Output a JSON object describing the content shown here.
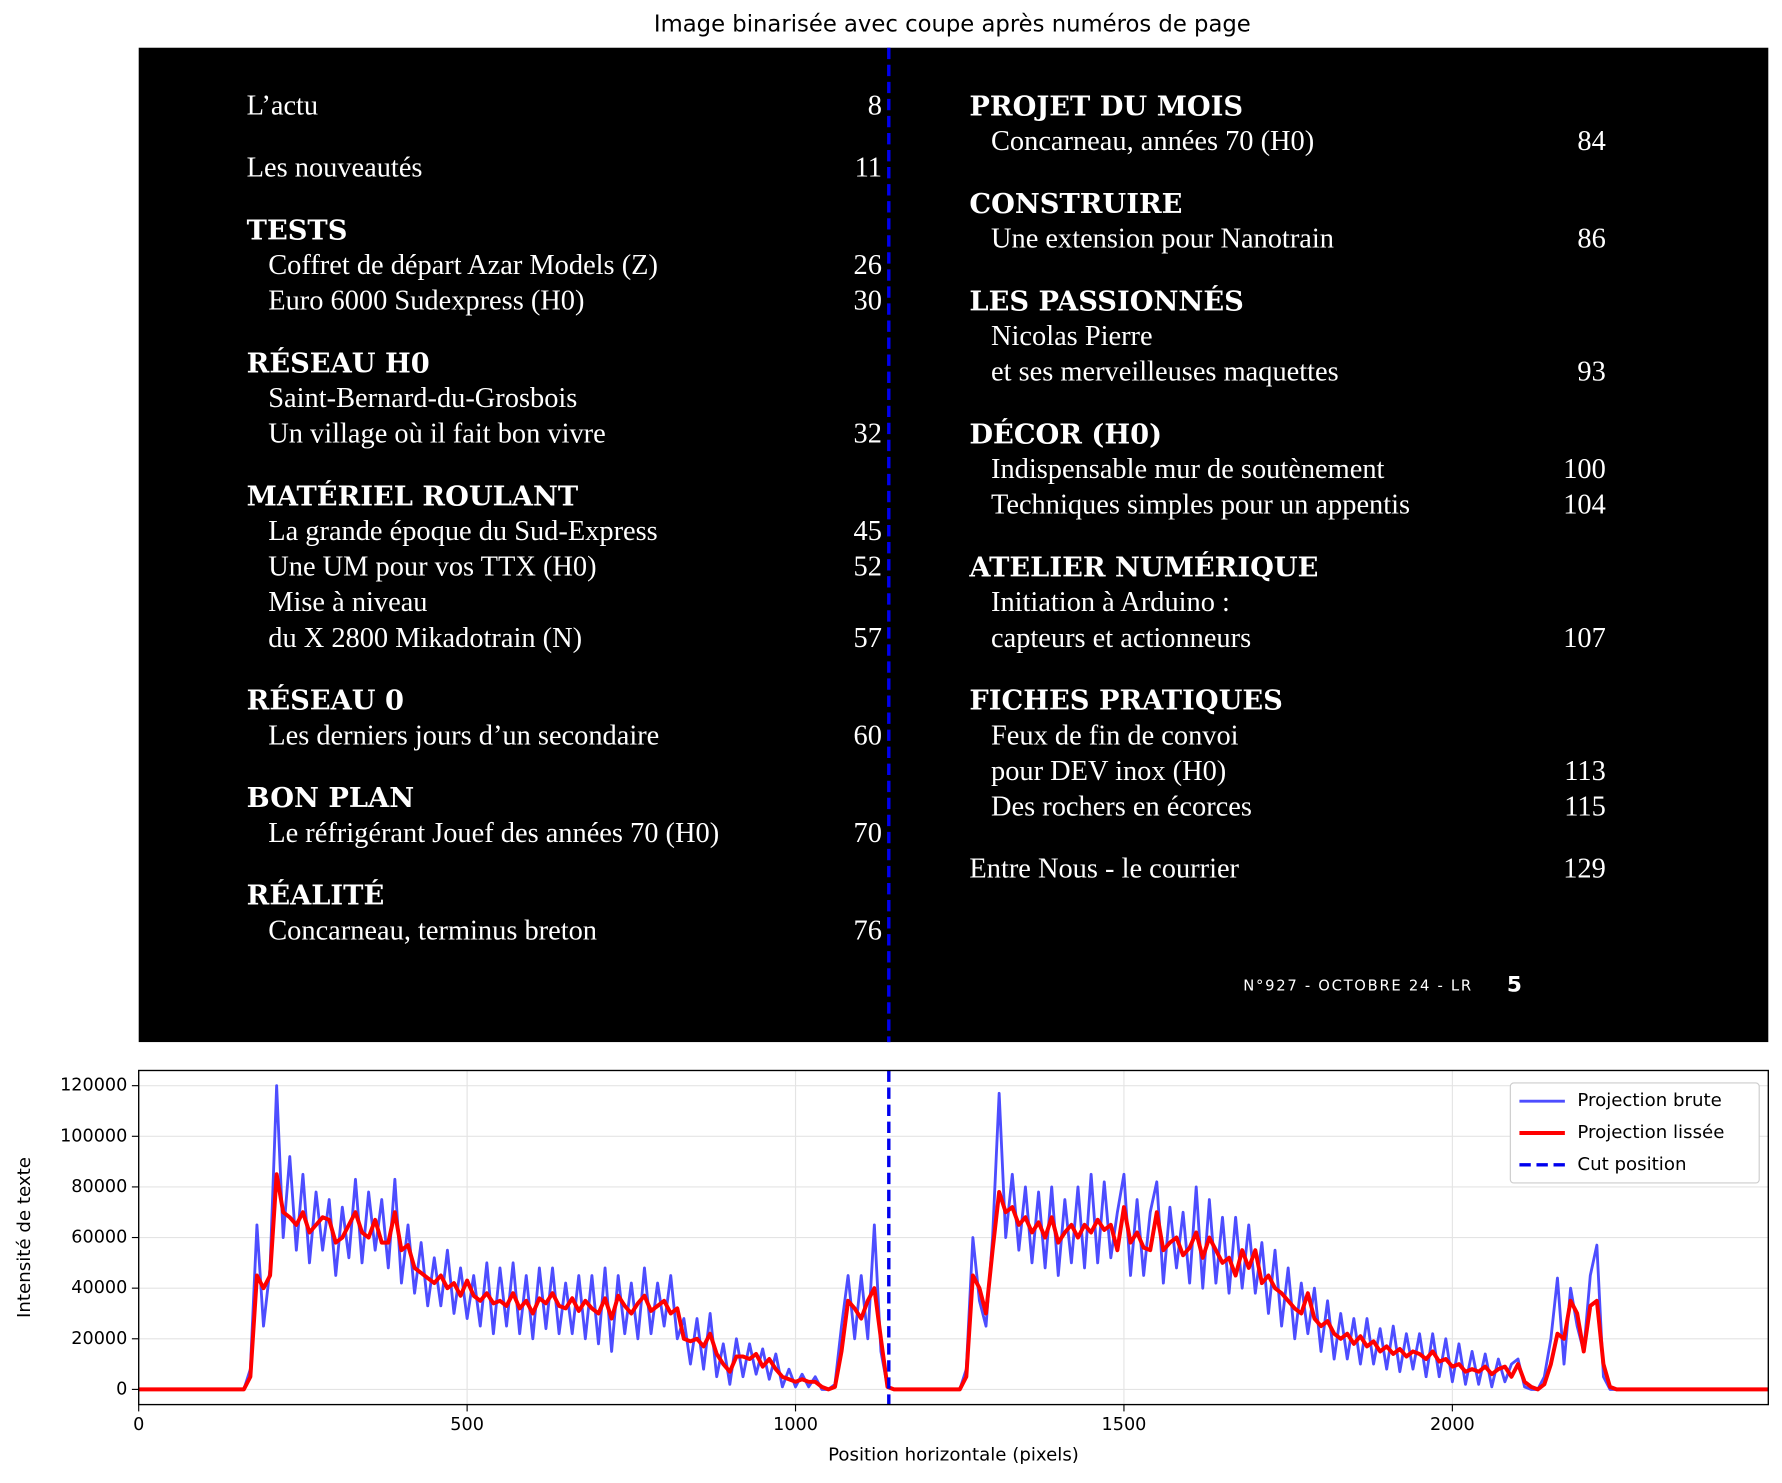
{
  "image_panel": {
    "title": "Image binarisée avec coupe après numéros de page",
    "columns": [
      {
        "entries": [
          {
            "text": "L’actu",
            "page": "8",
            "style": "entry"
          },
          {
            "text": "Les nouveautés",
            "page": "11",
            "style": "entry"
          },
          {
            "text": "TESTS",
            "style": "heading"
          },
          {
            "text": "Coffret de départ Azar Models (Z)",
            "page": "26",
            "style": "item"
          },
          {
            "text": "Euro 6000 Sudexpress (H0)",
            "page": "30",
            "style": "item"
          },
          {
            "text": "RÉSEAU H0",
            "style": "heading"
          },
          {
            "text": "Saint-Bernard-du-Grosbois",
            "style": "item"
          },
          {
            "text": "Un village où il fait bon vivre",
            "page": "32",
            "style": "item"
          },
          {
            "text": "MATÉRIEL ROULANT",
            "style": "heading"
          },
          {
            "text": "La grande époque du Sud-Express",
            "page": "45",
            "style": "item"
          },
          {
            "text": "Une UM pour vos TTX (H0)",
            "page": "52",
            "style": "item"
          },
          {
            "text": "Mise à niveau",
            "style": "item"
          },
          {
            "text": "du X 2800 Mikadotrain (N)",
            "page": "57",
            "style": "item"
          },
          {
            "text": "RÉSEAU 0",
            "style": "heading"
          },
          {
            "text": "Les derniers jours d’un secondaire",
            "page": "60",
            "style": "item"
          },
          {
            "text": "BON PLAN",
            "style": "heading"
          },
          {
            "text": "Le réfrigérant Jouef des années 70 (H0)",
            "page": "70",
            "style": "item"
          },
          {
            "text": "RÉALITÉ",
            "style": "heading"
          },
          {
            "text": "Concarneau, terminus breton",
            "page": "76",
            "style": "item"
          }
        ]
      },
      {
        "entries": [
          {
            "text": "PROJET DU MOIS",
            "style": "heading"
          },
          {
            "text": "Concarneau, années 70 (H0)",
            "page": "84",
            "style": "item"
          },
          {
            "text": "CONSTRUIRE",
            "style": "heading"
          },
          {
            "text": "Une extension pour Nanotrain",
            "page": "86",
            "style": "item"
          },
          {
            "text": "LES PASSIONNÉS",
            "style": "heading"
          },
          {
            "text": "Nicolas Pierre",
            "style": "item"
          },
          {
            "text": "et ses merveilleuses maquettes",
            "page": "93",
            "style": "item"
          },
          {
            "text": "DÉCOR (H0)",
            "style": "heading"
          },
          {
            "text": "Indispensable mur de soutènement",
            "page": "100",
            "style": "item"
          },
          {
            "text": "Techniques simples pour un appentis",
            "page": "104",
            "style": "item"
          },
          {
            "text": "ATELIER NUMÉRIQUE",
            "style": "heading"
          },
          {
            "text": "Initiation à Arduino :",
            "style": "item"
          },
          {
            "text": "capteurs et actionneurs",
            "page": "107",
            "style": "item"
          },
          {
            "text": "FICHES PRATIQUES",
            "style": "heading"
          },
          {
            "text": "Feux de fin de convoi",
            "style": "item"
          },
          {
            "text": "pour DEV inox (H0)",
            "page": "113",
            "style": "item"
          },
          {
            "text": "Des rochers en écorces",
            "page": "115",
            "style": "item"
          },
          {
            "text": "Entre Nous - le courrier",
            "page": "129",
            "style": "entry"
          }
        ]
      }
    ],
    "footer": {
      "text": "N°927 - OCTOBRE 24 - LR",
      "page": "5"
    }
  },
  "chart_data": {
    "type": "line",
    "xlabel": "Position horizontale (pixels)",
    "ylabel": "Intensité de texte",
    "xlim": [
      0,
      2481
    ],
    "ylim": [
      -6000,
      126000
    ],
    "xticks": [
      0,
      500,
      1000,
      1500,
      2000
    ],
    "yticks": [
      0,
      20000,
      40000,
      60000,
      80000,
      100000,
      120000
    ],
    "grid": true,
    "legend": "upper right",
    "x": [
      0,
      150,
      160,
      170,
      180,
      190,
      200,
      210,
      220,
      230,
      240,
      250,
      260,
      270,
      280,
      290,
      300,
      310,
      320,
      330,
      340,
      350,
      360,
      370,
      380,
      390,
      400,
      410,
      420,
      430,
      440,
      450,
      460,
      470,
      480,
      490,
      500,
      510,
      520,
      530,
      540,
      550,
      560,
      570,
      580,
      590,
      600,
      610,
      620,
      630,
      640,
      650,
      660,
      670,
      680,
      690,
      700,
      710,
      720,
      730,
      740,
      750,
      760,
      770,
      780,
      790,
      800,
      810,
      820,
      830,
      840,
      850,
      860,
      870,
      880,
      890,
      900,
      910,
      920,
      930,
      940,
      950,
      960,
      970,
      980,
      990,
      1000,
      1010,
      1020,
      1030,
      1040,
      1050,
      1060,
      1070,
      1080,
      1090,
      1100,
      1110,
      1120,
      1130,
      1140,
      1150,
      1250,
      1260,
      1270,
      1280,
      1290,
      1300,
      1310,
      1320,
      1330,
      1340,
      1350,
      1360,
      1370,
      1380,
      1390,
      1400,
      1410,
      1420,
      1430,
      1440,
      1450,
      1460,
      1470,
      1480,
      1490,
      1500,
      1510,
      1520,
      1530,
      1540,
      1550,
      1560,
      1570,
      1580,
      1590,
      1600,
      1610,
      1620,
      1630,
      1640,
      1650,
      1660,
      1670,
      1680,
      1690,
      1700,
      1710,
      1720,
      1730,
      1740,
      1750,
      1760,
      1770,
      1780,
      1790,
      1800,
      1810,
      1820,
      1830,
      1840,
      1850,
      1860,
      1870,
      1880,
      1890,
      1900,
      1910,
      1920,
      1930,
      1940,
      1950,
      1960,
      1970,
      1980,
      1990,
      2000,
      2010,
      2020,
      2030,
      2040,
      2050,
      2060,
      2070,
      2080,
      2090,
      2100,
      2110,
      2120,
      2130,
      2140,
      2150,
      2160,
      2170,
      2180,
      2190,
      2200,
      2210,
      2220,
      2230,
      2240,
      2250,
      2481
    ],
    "series": [
      {
        "name": "Projection brute",
        "color": "#4d4dff",
        "width": 2.5,
        "values": [
          0,
          0,
          0,
          8000,
          65000,
          25000,
          48000,
          120000,
          60000,
          92000,
          55000,
          85000,
          50000,
          78000,
          55000,
          75000,
          45000,
          72000,
          52000,
          83000,
          50000,
          78000,
          55000,
          75000,
          48000,
          83000,
          42000,
          65000,
          38000,
          58000,
          33000,
          52000,
          33000,
          55000,
          30000,
          48000,
          28000,
          45000,
          25000,
          50000,
          22000,
          48000,
          25000,
          50000,
          22000,
          45000,
          20000,
          48000,
          24000,
          48000,
          22000,
          42000,
          22000,
          45000,
          20000,
          45000,
          18000,
          48000,
          15000,
          45000,
          22000,
          42000,
          20000,
          48000,
          22000,
          42000,
          25000,
          45000,
          20000,
          28000,
          10000,
          28000,
          8000,
          30000,
          5000,
          18000,
          2000,
          20000,
          5000,
          18000,
          6000,
          16000,
          4000,
          14000,
          1000,
          8000,
          1000,
          6000,
          1000,
          5000,
          0,
          0,
          2000,
          25000,
          45000,
          20000,
          45000,
          20000,
          65000,
          15000,
          1000,
          0,
          0,
          8000,
          60000,
          35000,
          25000,
          60000,
          117000,
          60000,
          85000,
          55000,
          80000,
          50000,
          78000,
          48000,
          80000,
          45000,
          75000,
          50000,
          80000,
          48000,
          85000,
          50000,
          82000,
          52000,
          70000,
          85000,
          45000,
          75000,
          45000,
          70000,
          82000,
          42000,
          72000,
          48000,
          70000,
          42000,
          80000,
          40000,
          75000,
          42000,
          68000,
          38000,
          68000,
          40000,
          65000,
          38000,
          58000,
          30000,
          55000,
          25000,
          48000,
          20000,
          42000,
          22000,
          40000,
          15000,
          35000,
          12000,
          30000,
          12000,
          28000,
          10000,
          28000,
          10000,
          24000,
          8000,
          25000,
          7000,
          22000,
          8000,
          22000,
          5000,
          22000,
          5000,
          20000,
          3000,
          18000,
          2000,
          15000,
          2000,
          14000,
          1000,
          12000,
          3000,
          10000,
          12000,
          1000,
          0,
          0,
          5000,
          20000,
          44000,
          10000,
          40000,
          25000,
          15000,
          45000,
          57000,
          5000,
          0,
          0,
          0
        ]
      },
      {
        "name": "Projection lissée",
        "color": "#ff0000",
        "width": 3.5,
        "values": [
          0,
          0,
          0,
          5000,
          45000,
          40000,
          45000,
          85000,
          70000,
          68000,
          65000,
          70000,
          62000,
          65000,
          68000,
          67000,
          58000,
          60000,
          65000,
          70000,
          62000,
          60000,
          67000,
          58000,
          58000,
          70000,
          55000,
          57000,
          48000,
          46000,
          44000,
          42000,
          45000,
          40000,
          42000,
          37000,
          43000,
          37000,
          35000,
          38000,
          34000,
          35000,
          33000,
          38000,
          32000,
          35000,
          30000,
          36000,
          34000,
          38000,
          33000,
          32000,
          36000,
          31000,
          35000,
          32000,
          30000,
          36000,
          28000,
          37000,
          33000,
          30000,
          34000,
          37000,
          31000,
          33000,
          35000,
          30000,
          32000,
          20000,
          19000,
          20000,
          17000,
          22000,
          14000,
          10000,
          7000,
          13000,
          13000,
          12000,
          14000,
          9000,
          12000,
          8000,
          5000,
          4000,
          3000,
          4000,
          3000,
          3000,
          1000,
          0,
          1000,
          15000,
          35000,
          32000,
          28000,
          35000,
          40000,
          20000,
          1000,
          0,
          0,
          5000,
          45000,
          40000,
          30000,
          55000,
          78000,
          70000,
          72000,
          65000,
          68000,
          62000,
          66000,
          60000,
          68000,
          58000,
          62000,
          65000,
          60000,
          65000,
          62000,
          67000,
          63000,
          65000,
          55000,
          72000,
          58000,
          62000,
          56000,
          55000,
          70000,
          55000,
          58000,
          60000,
          53000,
          56000,
          62000,
          52000,
          60000,
          55000,
          50000,
          52000,
          45000,
          55000,
          48000,
          55000,
          42000,
          45000,
          40000,
          38000,
          35000,
          32000,
          30000,
          38000,
          28000,
          25000,
          27000,
          22000,
          20000,
          22000,
          18000,
          21000,
          17000,
          19000,
          15000,
          17000,
          14000,
          16000,
          13000,
          15000,
          14000,
          12000,
          15000,
          11000,
          12000,
          9000,
          10000,
          7000,
          8000,
          7000,
          9000,
          6000,
          8000,
          9000,
          5000,
          10000,
          3000,
          1000,
          0,
          2000,
          10000,
          22000,
          20000,
          35000,
          30000,
          15000,
          33000,
          35000,
          10000,
          1000,
          0,
          0
        ]
      }
    ],
    "vlines": [
      {
        "name": "Cut position",
        "x": 1142,
        "color": "#0000ee",
        "dashed": true
      }
    ]
  }
}
